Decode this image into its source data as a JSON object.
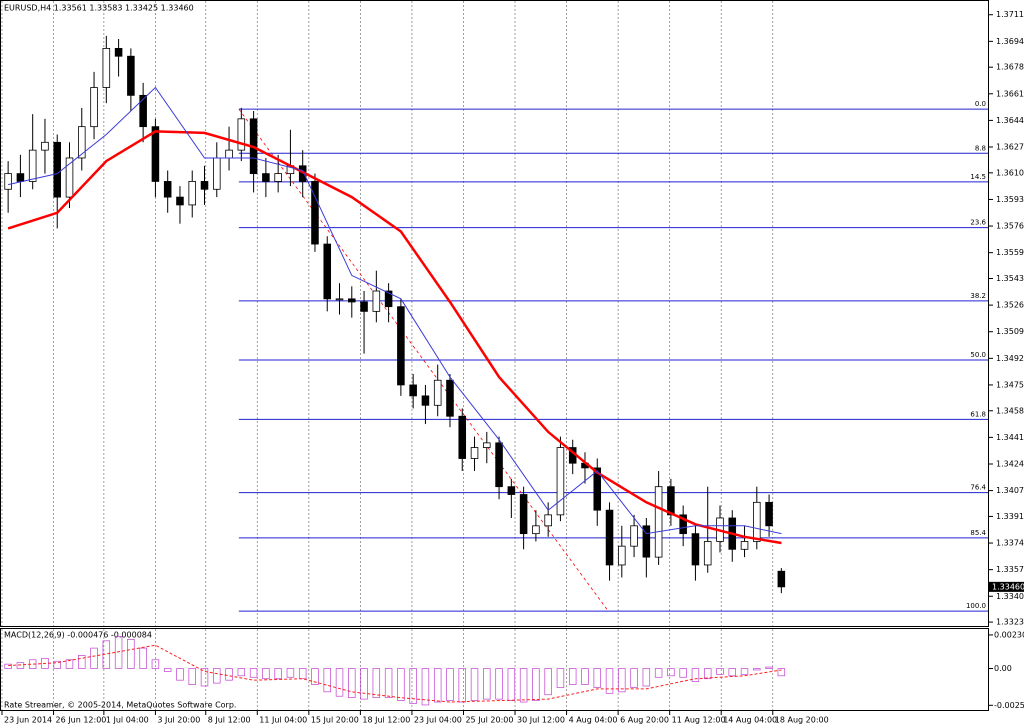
{
  "chart_data": {
    "type": "candlestick",
    "title": "EURUSD,H4  1.33561 1.33583 1.33425 1.33460",
    "xlim": [
      0,
      80.5
    ],
    "xticks": [
      {
        "value": 0,
        "label": "23 Jun 2014"
      },
      {
        "value": 4.2,
        "label": "26 Jun 12:00"
      },
      {
        "value": 8.3,
        "label": "1 Jul 04:00"
      },
      {
        "value": 12.5,
        "label": "3 Jul 20:00"
      },
      {
        "value": 16.6,
        "label": "8 Jul 12:00"
      },
      {
        "value": 20.8,
        "label": "11 Jul 04:00"
      },
      {
        "value": 25,
        "label": "15 Jul 20:00"
      },
      {
        "value": 29.2,
        "label": "18 Jul 12:00"
      },
      {
        "value": 33.4,
        "label": "23 Jul 04:00"
      },
      {
        "value": 37.6,
        "label": "25 Jul 20:00"
      },
      {
        "value": 41.8,
        "label": "30 Jul 12:00"
      },
      {
        "value": 46,
        "label": "4 Aug 04:00"
      },
      {
        "value": 50.2,
        "label": "6 Aug 20:00"
      },
      {
        "value": 54.4,
        "label": "11 Aug 12:00"
      },
      {
        "value": 58.6,
        "label": "14 Aug 04:00"
      },
      {
        "value": 62.8,
        "label": "18 Aug 20:00"
      }
    ],
    "ylim": [
      1.3321,
      1.3719
    ],
    "yticks": [
      1.37115,
      1.36945,
      {
        "value": 1.3678,
        "label": "1.36780"
      },
      {
        "value": 1.3661,
        "label": "1.36610"
      },
      {
        "value": 1.3644,
        "label": "1.36440"
      },
      {
        "value": 1.3627,
        "label": "1.36270"
      },
      1.36105,
      1.35935,
      1.35765,
      1.35595,
      {
        "value": 1.3543,
        "label": "1.35430"
      },
      {
        "value": 1.3526,
        "label": "1.35260"
      },
      {
        "value": 1.3509,
        "label": "1.35090"
      },
      {
        "value": 1.3492,
        "label": "1.34920"
      },
      {
        "value": 1.3475,
        "label": "1.34750"
      },
      1.34585,
      1.34415,
      1.34245,
      1.34075,
      {
        "value": 1.3391,
        "label": "1.33910"
      },
      {
        "value": 1.3374,
        "label": "1.33740"
      },
      {
        "value": 1.3357,
        "label": "1.33570"
      },
      {
        "value": 1.334,
        "label": "1.33400"
      },
      1.33235
    ],
    "grid": true,
    "open": [
      1.36,
      1.361,
      1.3605,
      1.3625,
      1.363,
      1.3595,
      1.362,
      1.364,
      1.3665,
      1.369,
      1.3685,
      1.366,
      1.364,
      1.3605,
      1.3595,
      1.359,
      1.3605,
      1.36,
      1.362,
      1.3625,
      1.3645,
      1.361,
      1.3605,
      1.361,
      1.3615,
      1.3605,
      1.3565,
      1.353,
      1.353,
      1.3528,
      1.3522,
      1.3535,
      1.3525,
      1.3475,
      1.3468,
      1.3462,
      1.3478,
      1.3455,
      1.3428,
      1.3435,
      1.3438,
      1.341,
      1.3405,
      1.338,
      1.3385,
      1.3392,
      1.3435,
      1.3425,
      1.3422,
      1.3395,
      1.336,
      1.3372,
      1.3385,
      1.3365,
      1.341,
      1.3392,
      1.338,
      1.336,
      1.3375,
      1.339,
      1.337,
      1.3375,
      1.34,
      1.3356
    ],
    "high": [
      1.3618,
      1.3622,
      1.3648,
      1.3645,
      1.3635,
      1.363,
      1.3652,
      1.3675,
      1.3698,
      1.3696,
      1.369,
      1.3668,
      1.3645,
      1.3612,
      1.3602,
      1.3612,
      1.3615,
      1.363,
      1.364,
      1.3652,
      1.365,
      1.362,
      1.3622,
      1.3638,
      1.3625,
      1.361,
      1.357,
      1.354,
      1.3538,
      1.3535,
      1.3548,
      1.354,
      1.353,
      1.3482,
      1.3475,
      1.3488,
      1.3482,
      1.346,
      1.3442,
      1.3445,
      1.3442,
      1.3415,
      1.341,
      1.3395,
      1.34,
      1.3442,
      1.344,
      1.3432,
      1.3428,
      1.34,
      1.3385,
      1.3392,
      1.339,
      1.342,
      1.3415,
      1.3398,
      1.3385,
      1.341,
      1.3398,
      1.3395,
      1.3385,
      1.341,
      1.3405,
      1.3358
    ],
    "low": [
      1.3585,
      1.3595,
      1.36,
      1.361,
      1.3575,
      1.3588,
      1.3612,
      1.3632,
      1.3655,
      1.3672,
      1.365,
      1.363,
      1.3595,
      1.3585,
      1.3578,
      1.3582,
      1.359,
      1.3595,
      1.3612,
      1.3618,
      1.3598,
      1.3595,
      1.3598,
      1.3602,
      1.3595,
      1.356,
      1.3522,
      1.352,
      1.3518,
      1.3495,
      1.3515,
      1.3515,
      1.3468,
      1.346,
      1.345,
      1.3455,
      1.3448,
      1.342,
      1.342,
      1.3425,
      1.3402,
      1.339,
      1.337,
      1.3375,
      1.3378,
      1.3388,
      1.3418,
      1.3412,
      1.3385,
      1.335,
      1.3352,
      1.3365,
      1.3352,
      1.336,
      1.3385,
      1.3372,
      1.335,
      1.3355,
      1.3368,
      1.3362,
      1.3365,
      1.337,
      1.3378,
      1.3342
    ],
    "close": [
      1.361,
      1.3605,
      1.3625,
      1.363,
      1.3595,
      1.362,
      1.364,
      1.3665,
      1.369,
      1.3685,
      1.366,
      1.364,
      1.3605,
      1.3595,
      1.359,
      1.3605,
      1.36,
      1.362,
      1.3625,
      1.3645,
      1.361,
      1.3605,
      1.361,
      1.3615,
      1.3605,
      1.3565,
      1.353,
      1.353,
      1.3528,
      1.3522,
      1.3535,
      1.3525,
      1.3475,
      1.3468,
      1.3462,
      1.3478,
      1.3455,
      1.3428,
      1.3435,
      1.3438,
      1.341,
      1.3405,
      1.338,
      1.3385,
      1.3392,
      1.3435,
      1.3425,
      1.3422,
      1.3395,
      1.336,
      1.3372,
      1.3385,
      1.3365,
      1.341,
      1.3392,
      1.338,
      1.336,
      1.3375,
      1.339,
      1.337,
      1.3375,
      1.34,
      1.3385,
      1.3346
    ],
    "overlays": [
      {
        "color": "#ff0000",
        "x": [
          0.5,
          4.5,
          8.5,
          12.5,
          16.5,
          20.5,
          24.5,
          28.5,
          32.5,
          36.5,
          40.5,
          44.5,
          48.5,
          52.5,
          56.5,
          60.5,
          63.5
        ],
        "values": [
          1.3575,
          1.3585,
          1.3618,
          1.3637,
          1.3636,
          1.3627,
          1.3611,
          1.3595,
          1.3573,
          1.3528,
          1.348,
          1.3445,
          1.3419,
          1.34,
          1.3386,
          1.3378,
          1.3374
        ]
      },
      {
        "color": "#3b3bdc",
        "x": [
          0.5,
          4.5,
          8.5,
          12.5,
          16.5,
          20.5,
          24.5,
          28.5,
          32.5,
          36.5,
          40.5,
          44.5,
          48.5,
          52.5,
          56.5,
          60.5,
          63.5
        ],
        "values": [
          1.3603,
          1.361,
          1.3635,
          1.3665,
          1.362,
          1.362,
          1.3612,
          1.3545,
          1.353,
          1.348,
          1.344,
          1.3395,
          1.342,
          1.338,
          1.3385,
          1.3385,
          1.338
        ]
      }
    ],
    "fibo": {
      "x": [
        19.3,
        49.4
      ],
      "color": "#2020d0",
      "trend_color": "#ff0000",
      "levels": [
        {
          "label": "0.0",
          "value": 1.36512
        },
        {
          "label": "8.8",
          "value": 1.3623
        },
        {
          "label": "14.5",
          "value": 1.36047
        },
        {
          "label": "23.6",
          "value": 1.35755
        },
        {
          "label": "38.2",
          "value": 1.35287
        },
        {
          "label": "50.0",
          "value": 1.34909
        },
        {
          "label": "61.8",
          "value": 1.3453
        },
        {
          "label": "76.4",
          "value": 1.34062
        },
        {
          "label": "85.4",
          "value": 1.33773
        },
        {
          "label": "100.0",
          "value": 1.33305
        }
      ]
    },
    "price_tag": {
      "value": 1.3346,
      "label": "1.33460"
    },
    "footer": "Rate Streamer, © 2005-2014, MetaQuotes Software Corp.",
    "macd": {
      "title": "MACD(12,26,9) -0.000476 -0.000084",
      "ylim": [
        -0.002846,
        0.002711
      ],
      "yticks": [
        0.002304,
        {
          "value": 0,
          "label": "0.00"
        },
        -0.002524
      ],
      "histogram_color": "#c040d0",
      "histogram": [
        0.0003,
        0.0004,
        0.0006,
        0.0007,
        0.0005,
        0.0006,
        0.0009,
        0.0014,
        0.0019,
        0.0022,
        0.002,
        0.0014,
        0.0006,
        -0.0002,
        -0.0008,
        -0.0011,
        -0.0012,
        -0.001,
        -0.0008,
        -0.0005,
        -0.0006,
        -0.0007,
        -0.0007,
        -0.0006,
        -0.0007,
        -0.0011,
        -0.0016,
        -0.0019,
        -0.002,
        -0.0021,
        -0.002,
        -0.002,
        -0.0022,
        -0.0024,
        -0.0025,
        -0.0023,
        -0.0022,
        -0.0023,
        -0.0022,
        -0.0021,
        -0.0021,
        -0.0022,
        -0.0023,
        -0.0022,
        -0.0018,
        -0.0013,
        -0.0011,
        -0.0011,
        -0.0013,
        -0.0017,
        -0.0016,
        -0.0013,
        -0.0012,
        -0.0006,
        -0.0005,
        -0.0006,
        -0.0009,
        -0.0007,
        -0.0004,
        -0.0005,
        -0.0004,
        -0.0001,
        0.0001,
        -0.0005
      ],
      "signal": {
        "color": "#ff2020",
        "x": [
          0.5,
          4.5,
          8.5,
          12.5,
          16.5,
          20.5,
          24.5,
          28.5,
          32.5,
          36.5,
          40.5,
          44.5,
          48.5,
          52.5,
          56.5,
          60.5,
          63.5
        ],
        "values": [
          0.0002,
          0.0004,
          0.001,
          0.0016,
          -0.0002,
          -0.0008,
          -0.0007,
          -0.0016,
          -0.002,
          -0.0023,
          -0.0022,
          -0.0021,
          -0.0014,
          -0.0014,
          -0.0007,
          -0.0005,
          -0.0001
        ]
      }
    }
  }
}
